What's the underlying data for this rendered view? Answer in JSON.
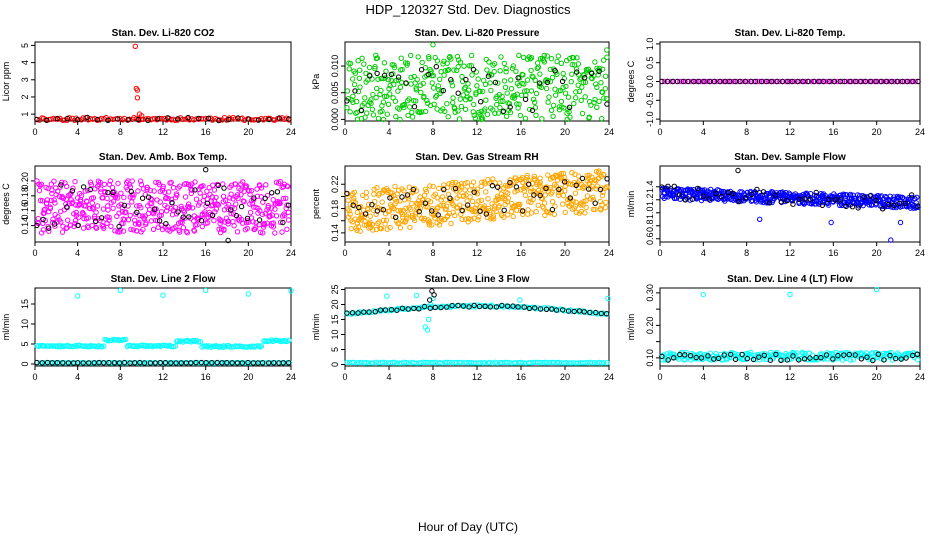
{
  "page": {
    "title": "HDP_120327  Std. Dev. Diagnostics",
    "xlabel": "Hour of Day (UTC)"
  },
  "chart_data": [
    {
      "type": "scatter",
      "title": "Stan. Dev. Li-820 CO2",
      "ylabel": "Licor ppm",
      "xlim": [
        0,
        24
      ],
      "ylim": [
        0.6,
        5.2
      ],
      "xticks": [
        0,
        4,
        8,
        12,
        16,
        20,
        24
      ],
      "yticks": [
        1,
        2,
        3,
        4,
        5
      ],
      "ytick_labels": [
        "1",
        "2",
        "3",
        "4",
        "5"
      ],
      "series": [
        {
          "color": "#ff0000",
          "gen": {
            "mode": "noise",
            "base": 0.72,
            "amp": 0.08,
            "n": 110,
            "seed": 11
          }
        },
        {
          "color": "#ff0000",
          "points": [
            [
              9.4,
              4.95
            ],
            [
              9.5,
              2.5
            ],
            [
              9.6,
              2.4
            ],
            [
              9.6,
              1.95
            ],
            [
              9.8,
              1.0
            ],
            [
              10.0,
              0.9
            ]
          ]
        },
        {
          "color": "#000000",
          "gen": {
            "mode": "noise",
            "base": 0.72,
            "amp": 0.1,
            "n": 26,
            "seed": 12
          }
        }
      ]
    },
    {
      "type": "scatter",
      "title": "Stan. Dev. Li-820 Pressure",
      "ylabel": "kPa",
      "xlim": [
        0,
        24
      ],
      "ylim": [
        -0.0003,
        0.0145
      ],
      "xticks": [
        0,
        4,
        8,
        12,
        16,
        20,
        24
      ],
      "yticks": [
        0.0,
        0.005,
        0.01
      ],
      "ytick_labels": [
        "0.000",
        "0.005",
        "0.010"
      ],
      "series": [
        {
          "color": "#00cc00",
          "gen": {
            "mode": "band",
            "base": 0.006,
            "amp": 0.006,
            "n": 420,
            "seed": 21
          }
        },
        {
          "color": "#00cc00",
          "points": [
            [
              1.2,
              0.011
            ],
            [
              2.8,
              0.012
            ],
            [
              8.0,
              0.014
            ],
            [
              15.8,
              0.012
            ],
            [
              23.8,
              0.013
            ],
            [
              3.5,
              0.0
            ],
            [
              5.0,
              0.0
            ],
            [
              12.4,
              0.0
            ],
            [
              20.2,
              0.0
            ]
          ]
        },
        {
          "color": "#000000",
          "gen": {
            "mode": "band",
            "base": 0.0055,
            "amp": 0.0045,
            "n": 36,
            "seed": 22
          }
        }
      ]
    },
    {
      "type": "scatter",
      "title": "Stan. Dev. Li-820 Temp.",
      "ylabel": "degrees C",
      "xlim": [
        0,
        24
      ],
      "ylim": [
        -1.05,
        1.05
      ],
      "xticks": [
        0,
        4,
        8,
        12,
        16,
        20,
        24
      ],
      "yticks": [
        -1,
        -0.5,
        0,
        0.5,
        1
      ],
      "ytick_labels": [
        "-1.0",
        "-0.5",
        "0.0",
        "0.5",
        "1.0"
      ],
      "series": [
        {
          "color": "#ff00ff",
          "gen": {
            "mode": "noise",
            "base": 0.0,
            "amp": 0.0,
            "n": 90,
            "seed": 31
          }
        },
        {
          "color": "#000000",
          "gen": {
            "mode": "noise",
            "base": 0.0,
            "amp": 0.0,
            "n": 50,
            "seed": 32
          }
        }
      ]
    },
    {
      "type": "scatter",
      "title": "Stan. Dev. Amb. Box Temp.",
      "ylabel": "degrees C",
      "xlim": [
        0,
        24
      ],
      "ylim": [
        0.118,
        0.22
      ],
      "xticks": [
        0,
        4,
        8,
        12,
        16,
        20,
        24
      ],
      "yticks": [
        0.14,
        0.16,
        0.18,
        0.2
      ],
      "ytick_labels": [
        "0.14",
        "0.16",
        "0.18",
        "0.20"
      ],
      "series": [
        {
          "color": "#ff00ff",
          "gen": {
            "mode": "band",
            "base": 0.165,
            "amp": 0.035,
            "n": 520,
            "seed": 41
          }
        },
        {
          "color": "#000000",
          "gen": {
            "mode": "band",
            "base": 0.165,
            "amp": 0.03,
            "n": 44,
            "seed": 42
          }
        },
        {
          "color": "#000000",
          "points": [
            [
              16.0,
              0.215
            ],
            [
              18.1,
              0.12
            ]
          ]
        }
      ]
    },
    {
      "type": "scatter",
      "title": "Stan. Dev. Gas Stream RH",
      "ylabel": "percent",
      "xlim": [
        0,
        24
      ],
      "ylim": [
        0.125,
        0.25
      ],
      "xticks": [
        0,
        4,
        8,
        12,
        16,
        20,
        24
      ],
      "yticks": [
        0.14,
        0.16,
        0.18,
        0.2,
        0.22
      ],
      "ytick_labels": [
        "0.14",
        "",
        "0.18",
        "",
        "0.22"
      ],
      "series": [
        {
          "color": "#ffa500",
          "gen": {
            "mode": "trend",
            "base": 0.175,
            "slope": 0.0015,
            "amp": 0.035,
            "n": 520,
            "seed": 51
          }
        },
        {
          "color": "#000000",
          "gen": {
            "mode": "trend",
            "base": 0.18,
            "slope": 0.0012,
            "amp": 0.025,
            "n": 44,
            "seed": 52
          }
        }
      ]
    },
    {
      "type": "scatter",
      "title": "Stan. Dev. Sample Flow",
      "ylabel": "ml/min",
      "xlim": [
        0,
        24
      ],
      "ylim": [
        0.55,
        1.72
      ],
      "xticks": [
        0,
        4,
        8,
        12,
        16,
        20,
        24
      ],
      "yticks": [
        0.6,
        0.8,
        1.0,
        1.2,
        1.4
      ],
      "ytick_labels": [
        "0.6",
        "0.8",
        "1.0",
        "1.2",
        "1.4"
      ],
      "series": [
        {
          "color": "#0000ff",
          "gen": {
            "mode": "trend",
            "base": 1.3,
            "slope": -0.006,
            "amp": 0.09,
            "n": 480,
            "seed": 61
          }
        },
        {
          "color": "#0000ff",
          "points": [
            [
              21.3,
              0.58
            ],
            [
              15.8,
              0.85
            ],
            [
              9.2,
              0.9
            ],
            [
              22.2,
              0.85
            ]
          ]
        },
        {
          "color": "#000000",
          "gen": {
            "mode": "trend",
            "base": 1.3,
            "slope": -0.006,
            "amp": 0.12,
            "n": 44,
            "seed": 62
          }
        },
        {
          "color": "#000000",
          "points": [
            [
              7.2,
              1.65
            ]
          ]
        }
      ]
    },
    {
      "type": "scatter",
      "title": "Stan. Dev. Line 2 Flow",
      "ylabel": "ml/min",
      "xlim": [
        0,
        24
      ],
      "ylim": [
        -0.5,
        19
      ],
      "xticks": [
        0,
        4,
        8,
        12,
        16,
        20,
        24
      ],
      "yticks": [
        0,
        5,
        10,
        15
      ],
      "ytick_labels": [
        "0",
        "5",
        "10",
        "15"
      ],
      "series": [
        {
          "color": "#00ffff",
          "gen": {
            "mode": "steps",
            "n": 160,
            "seed": 71,
            "levels": [
              [
                0,
                6.5,
                4.5
              ],
              [
                6.5,
                8.6,
                6.0
              ],
              [
                8.6,
                13.2,
                4.5
              ],
              [
                13.2,
                15.6,
                5.7
              ],
              [
                15.6,
                21.4,
                4.4
              ],
              [
                21.4,
                24,
                5.8
              ]
            ]
          }
        },
        {
          "color": "#00ffff",
          "points": [
            [
              4.0,
              17.0
            ],
            [
              8.0,
              18.4
            ],
            [
              12.0,
              17.2
            ],
            [
              16.0,
              18.4
            ],
            [
              20.0,
              17.5
            ],
            [
              24.0,
              18.3
            ]
          ]
        },
        {
          "color": "#00ffff",
          "gen": {
            "mode": "noise",
            "base": 0.3,
            "amp": 0.05,
            "n": 100,
            "seed": 73
          }
        },
        {
          "color": "#000000",
          "gen": {
            "mode": "noise",
            "base": 0.3,
            "amp": 0.05,
            "n": 50,
            "seed": 74
          }
        }
      ]
    },
    {
      "type": "scatter",
      "title": "Stan. Dev. Line 3 Flow",
      "ylabel": "ml/min",
      "xlim": [
        0,
        24
      ],
      "ylim": [
        -0.5,
        25.5
      ],
      "xticks": [
        0,
        4,
        8,
        12,
        16,
        20,
        24
      ],
      "yticks": [
        0,
        5,
        10,
        15,
        20,
        25
      ],
      "ytick_labels": [
        "0",
        "5",
        "10",
        "15",
        "20",
        "25"
      ],
      "series": [
        {
          "color": "#00ffff",
          "gen": {
            "mode": "arc",
            "base": 16.8,
            "peak": 19.5,
            "amp": 0.3,
            "n": 130,
            "seed": 81
          }
        },
        {
          "color": "#00ffff",
          "points": [
            [
              3.8,
              22.8
            ],
            [
              6.5,
              23.0
            ],
            [
              7.3,
              12.5
            ],
            [
              7.6,
              15.0
            ],
            [
              7.8,
              20.0
            ],
            [
              8.0,
              22.0
            ],
            [
              7.5,
              11.5
            ],
            [
              15.9,
              21.5
            ],
            [
              23.9,
              22.0
            ]
          ]
        },
        {
          "color": "#00ffff",
          "gen": {
            "mode": "noise",
            "base": 0.6,
            "amp": 0.15,
            "n": 110,
            "seed": 83
          }
        },
        {
          "color": "#000000",
          "gen": {
            "mode": "arc",
            "base": 16.8,
            "peak": 19.5,
            "amp": 0.35,
            "n": 48,
            "seed": 84
          }
        },
        {
          "color": "#000000",
          "points": [
            [
              7.9,
              24.5
            ],
            [
              7.7,
              21.5
            ],
            [
              8.1,
              23.2
            ]
          ]
        }
      ]
    },
    {
      "type": "scatter",
      "title": "Stan. Dev. Line 4 (LT) Flow",
      "ylabel": "ml/min",
      "xlim": [
        0,
        24
      ],
      "ylim": [
        0.075,
        0.315
      ],
      "xticks": [
        0,
        4,
        8,
        12,
        16,
        20,
        24
      ],
      "yticks": [
        0.1,
        0.15,
        0.2,
        0.25,
        0.3
      ],
      "ytick_labels": [
        "0.10",
        "",
        "0.20",
        "",
        "0.30"
      ],
      "series": [
        {
          "color": "#00ffff",
          "gen": {
            "mode": "band",
            "base": 0.105,
            "amp": 0.012,
            "n": 240,
            "seed": 91
          }
        },
        {
          "color": "#00ffff",
          "points": [
            [
              4.0,
              0.295
            ],
            [
              12.0,
              0.295
            ],
            [
              20.0,
              0.31
            ]
          ]
        },
        {
          "color": "#000000",
          "gen": {
            "mode": "band",
            "base": 0.102,
            "amp": 0.01,
            "n": 46,
            "seed": 92
          }
        }
      ]
    }
  ]
}
